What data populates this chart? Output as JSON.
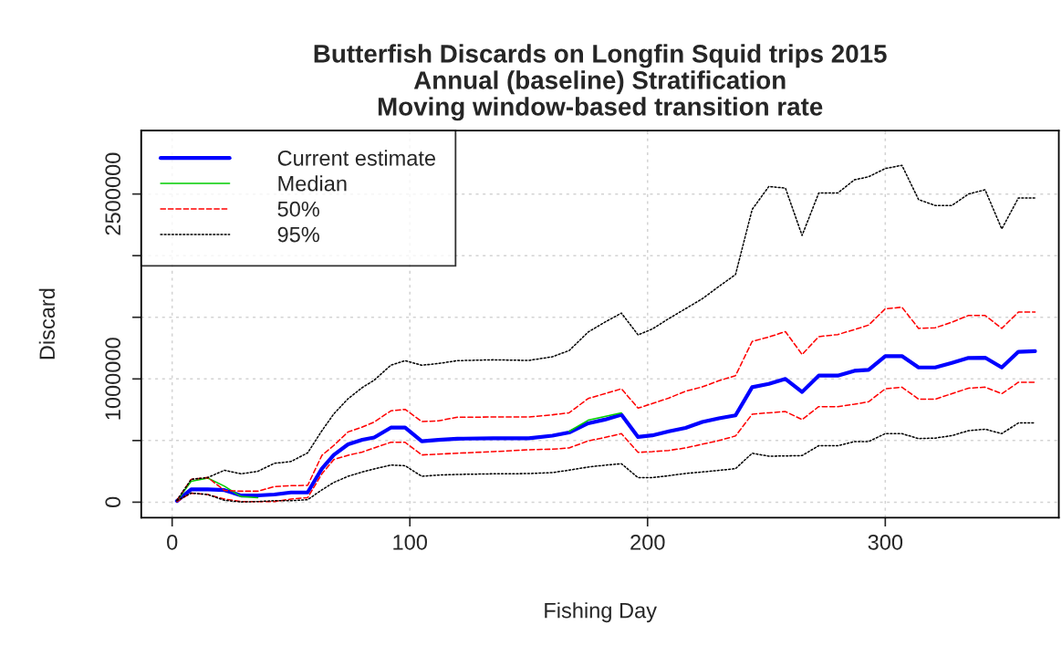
{
  "chart_data": {
    "type": "line",
    "title": "Butterfish Discards on Longfin Squid trips 2015\nAnnual (baseline) Stratification\nMoving window-based transition rate",
    "xlabel": "Fishing Day",
    "ylabel": "Discard",
    "x": [
      2,
      8,
      15,
      22,
      29,
      36,
      43,
      50,
      57,
      63,
      68,
      74,
      80,
      85,
      92,
      98,
      105,
      112,
      120,
      135,
      150,
      160,
      167,
      175,
      182,
      189,
      196,
      202,
      209,
      216,
      223,
      230,
      237,
      244,
      251,
      258,
      265,
      272,
      280,
      287,
      293,
      300,
      307,
      314,
      321,
      328,
      335,
      342,
      349,
      356,
      363
    ],
    "series": [
      {
        "name": "Current estimate",
        "color": "#0000ff",
        "line_style": "solid",
        "values": [
          10000,
          104000,
          104000,
          98000,
          54000,
          55000,
          62000,
          79000,
          79000,
          272000,
          383000,
          469000,
          506000,
          525000,
          605000,
          605000,
          494000,
          505000,
          515000,
          518000,
          518000,
          540000,
          565000,
          640000,
          670000,
          709000,
          529000,
          542000,
          575000,
          603000,
          650000,
          680000,
          704000,
          933000,
          960000,
          1000000,
          894000,
          1027000,
          1027000,
          1066000,
          1074000,
          1185000,
          1185000,
          1093000,
          1093000,
          1130000,
          1170000,
          1172000,
          1093000,
          1220000,
          1225000
        ]
      },
      {
        "name": "Median",
        "color": "#00cd00",
        "line_style": "solid",
        "values": [
          10000,
          170000,
          195000,
          130000,
          45000,
          37000,
          null,
          null,
          null,
          null,
          null,
          null,
          null,
          null,
          null,
          null,
          null,
          null,
          null,
          null,
          null,
          null,
          575000,
          665000,
          695000,
          725000,
          null,
          null,
          null,
          null,
          null,
          null,
          null,
          null,
          null,
          null,
          null,
          null,
          null,
          null,
          null,
          null,
          null,
          null,
          null,
          null,
          null,
          null,
          null,
          null,
          null
        ]
      },
      {
        "name": "50%",
        "color": "#ff0000",
        "line_style": "dashed",
        "values": [
          15000,
          185000,
          200000,
          95000,
          89000,
          89000,
          126000,
          134000,
          136000,
          380000,
          460000,
          570000,
          610000,
          650000,
          741000,
          753000,
          654000,
          660000,
          689000,
          691000,
          691000,
          709000,
          725000,
          841000,
          880000,
          920000,
          763000,
          800000,
          845000,
          900000,
          935000,
          985000,
          1027000,
          1304000,
          1340000,
          1384000,
          1198000,
          1343000,
          1360000,
          1400000,
          1437000,
          1569000,
          1582000,
          1410000,
          1415000,
          1460000,
          1515000,
          1515000,
          1410000,
          1542000,
          1542000
        ]
      },
      {
        "color": "#ff0000",
        "line_style": "dashed",
        "values": [
          5000,
          74000,
          62000,
          25000,
          5000,
          5000,
          5000,
          25000,
          37000,
          230000,
          346000,
          380000,
          407000,
          440000,
          486000,
          486000,
          383000,
          390000,
          397000,
          410000,
          425000,
          430000,
          440000,
          497000,
          525000,
          556000,
          404000,
          410000,
          420000,
          440000,
          470000,
          500000,
          537000,
          714000,
          725000,
          735000,
          670000,
          775000,
          775000,
          795000,
          815000,
          920000,
          933000,
          836000,
          836000,
          880000,
          925000,
          933000,
          880000,
          973000,
          973000
        ]
      },
      {
        "name": "95%",
        "color": "#000000",
        "line_style": "dotted",
        "values": [
          15000,
          185000,
          200000,
          259000,
          230000,
          250000,
          315000,
          330000,
          400000,
          580000,
          716000,
          839000,
          930000,
          990000,
          1111000,
          1148000,
          1111000,
          1125000,
          1148000,
          1155000,
          1150000,
          1180000,
          1230000,
          1380000,
          1460000,
          1534000,
          1357000,
          1405000,
          1490000,
          1570000,
          1650000,
          1750000,
          1847000,
          2375000,
          2561000,
          2548000,
          2164000,
          2508000,
          2508000,
          2615000,
          2640000,
          2707000,
          2733000,
          2455000,
          2407000,
          2407000,
          2500000,
          2534000,
          2217000,
          2468000,
          2468000
        ]
      },
      {
        "color": "#000000",
        "line_style": "dotted",
        "values": [
          12000,
          74000,
          62000,
          15000,
          2000,
          5000,
          12000,
          12000,
          20000,
          100000,
          160000,
          210000,
          245000,
          270000,
          301000,
          296000,
          210000,
          220000,
          225000,
          230000,
          232000,
          240000,
          260000,
          285000,
          300000,
          312000,
          199000,
          199000,
          215000,
          233000,
          245000,
          258000,
          272000,
          397000,
          373000,
          375000,
          378000,
          458000,
          458000,
          492000,
          492000,
          556000,
          556000,
          516000,
          520000,
          540000,
          580000,
          592000,
          556000,
          643000,
          643000
        ]
      }
    ],
    "xlim": [
      -13,
      373
    ],
    "xticks": [
      0,
      100,
      200,
      300
    ],
    "ylim": [
      -125000,
      3015000
    ],
    "yticks": [
      0,
      {
        "value": 500000,
        "label": null
      },
      1000000,
      {
        "value": 1500000,
        "label": null
      },
      {
        "value": 2000000,
        "label": null
      },
      2500000
    ],
    "grid": true,
    "legend": "top left"
  }
}
